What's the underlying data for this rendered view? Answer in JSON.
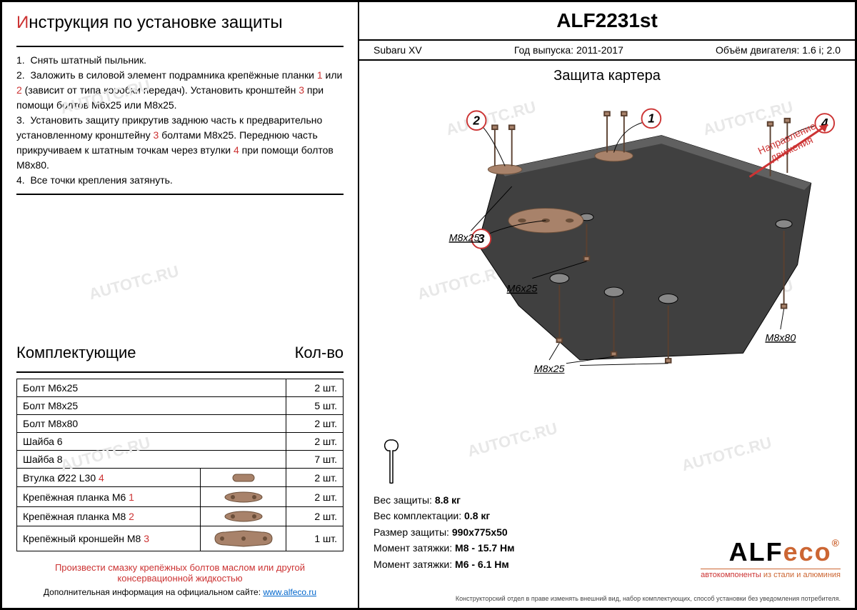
{
  "title_prefix": "И",
  "title_rest": "нструкция по установке защиты",
  "instructions": [
    {
      "n": "1.",
      "text": "Снять штатный пыльник."
    },
    {
      "n": "2.",
      "text": "Заложить в силовой элемент подрамника крепёжные планки ",
      "refs": [
        "1",
        " или ",
        "2"
      ],
      "tail": " (зависит от типа коробки передач). Установить кронштейн ",
      "ref2": "3",
      "tail2": " при помощи болтов М6х25 или М8х25."
    },
    {
      "n": "3.",
      "text": "Установить защиту прикрутив заднюю часть к предварительно установленному кронштейну ",
      "ref": "3",
      "tail": " болтами М8х25. Переднюю часть прикручиваем к штатным точкам через втулки ",
      "ref2": "4",
      "tail2": " при помощи болтов М8х80."
    },
    {
      "n": "4.",
      "text": "Все точки крепления затянуть."
    }
  ],
  "components_label": "Комплектующие",
  "qty_label": "Кол-во",
  "components": [
    {
      "name": "Болт М6х25",
      "ref": "",
      "qty": "2 шт.",
      "icon": ""
    },
    {
      "name": "Болт М8х25",
      "ref": "",
      "qty": "5 шт.",
      "icon": ""
    },
    {
      "name": "Болт М8х80",
      "ref": "",
      "qty": "2 шт.",
      "icon": ""
    },
    {
      "name": "Шайба 6",
      "ref": "",
      "qty": "2 шт.",
      "icon": ""
    },
    {
      "name": "Шайба 8",
      "ref": "",
      "qty": "7 шт.",
      "icon": ""
    },
    {
      "name": "Втулка Ø22 L30",
      "ref": "4",
      "qty": "2 шт.",
      "icon": "vtulka"
    },
    {
      "name": "Крепёжная планка М6",
      "ref": "1",
      "qty": "2 шт.",
      "icon": "planka-s"
    },
    {
      "name": "Крепёжная планка М8",
      "ref": "2",
      "qty": "2 шт.",
      "icon": "planka-s"
    },
    {
      "name": "Крепёжный кроншейн М8",
      "ref": "3",
      "qty": "1 шт.",
      "icon": "planka-l"
    }
  ],
  "warn": "Произвести смазку крепёжных болтов маслом или другой консервационной жидкостью",
  "info_prefix": "Дополнительная информация на официальном сайте: ",
  "info_url": "www.alfeco.ru",
  "part_no": "ALF2231st",
  "model_label": "Subaru XV",
  "year_label": "Год выпуска: 2011-2017",
  "engine_label": "Объём двигателя: 1.6 i; 2.0",
  "diagram_title": "Защита картера",
  "direction_label": "Направление движения",
  "callouts": {
    "c1": "1",
    "c2": "2",
    "c3": "3",
    "c4": "4",
    "l1": "M8x25",
    "l2": "M6x25",
    "l3": "M8x25",
    "l4": "M8x80"
  },
  "specs": [
    {
      "label": "Вес защиты:",
      "value": "8.8 кг"
    },
    {
      "label": "Вес комплектации:",
      "value": "0.8 кг"
    },
    {
      "label": "Размер защиты:",
      "value": "990х775х50"
    },
    {
      "label": "Момент затяжки:",
      "value": "М8 - 15.7 Нм"
    },
    {
      "label": "Момент затяжки:",
      "value": "М6 - 6.1 Нм"
    }
  ],
  "logo": "ALFeco",
  "logo_reg": "®",
  "logo_sub_red": "автокомпоненты",
  "logo_sub_rest": " из стали и алюминия",
  "disclaimer": "Конструкторский отдел в праве изменять внешний вид, набор комплектующих, способ установки без уведомления потребителя.",
  "watermark": "AUTOTC.RU",
  "colors": {
    "red": "#cc3333",
    "brown": "#a8826a",
    "black": "#000000",
    "darkgray": "#404040"
  }
}
